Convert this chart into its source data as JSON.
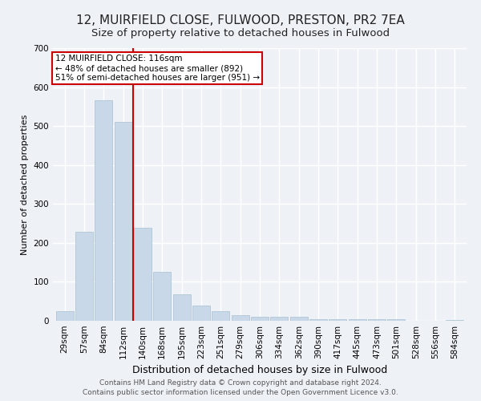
{
  "title1": "12, MUIRFIELD CLOSE, FULWOOD, PRESTON, PR2 7EA",
  "title2": "Size of property relative to detached houses in Fulwood",
  "xlabel": "Distribution of detached houses by size in Fulwood",
  "ylabel": "Number of detached properties",
  "footer": "Contains HM Land Registry data © Crown copyright and database right 2024.\nContains public sector information licensed under the Open Government Licence v3.0.",
  "categories": [
    "29sqm",
    "57sqm",
    "84sqm",
    "112sqm",
    "140sqm",
    "168sqm",
    "195sqm",
    "223sqm",
    "251sqm",
    "279sqm",
    "306sqm",
    "334sqm",
    "362sqm",
    "390sqm",
    "417sqm",
    "445sqm",
    "473sqm",
    "501sqm",
    "528sqm",
    "556sqm",
    "584sqm"
  ],
  "values": [
    25,
    228,
    567,
    510,
    238,
    125,
    68,
    40,
    25,
    14,
    10,
    10,
    10,
    5,
    5,
    5,
    5,
    5,
    0,
    0,
    3
  ],
  "bar_color": "#c8d8e8",
  "bar_edge_color": "#a8bfcf",
  "vline_x": 3.5,
  "vline_color": "#cc0000",
  "annotation_line1": "12 MUIRFIELD CLOSE: 116sqm",
  "annotation_line2": "← 48% of detached houses are smaller (892)",
  "annotation_line3": "51% of semi-detached houses are larger (951) →",
  "annotation_box_edge": "#cc0000",
  "ylim": [
    0,
    700
  ],
  "yticks": [
    0,
    100,
    200,
    300,
    400,
    500,
    600,
    700
  ],
  "bg_color": "#eef2f7",
  "plot_bg_color": "#eef2f7",
  "grid_color": "#ffffff",
  "title1_fontsize": 11,
  "title2_fontsize": 9.5,
  "xlabel_fontsize": 9,
  "ylabel_fontsize": 8,
  "tick_fontsize": 7.5,
  "footer_fontsize": 6.5
}
